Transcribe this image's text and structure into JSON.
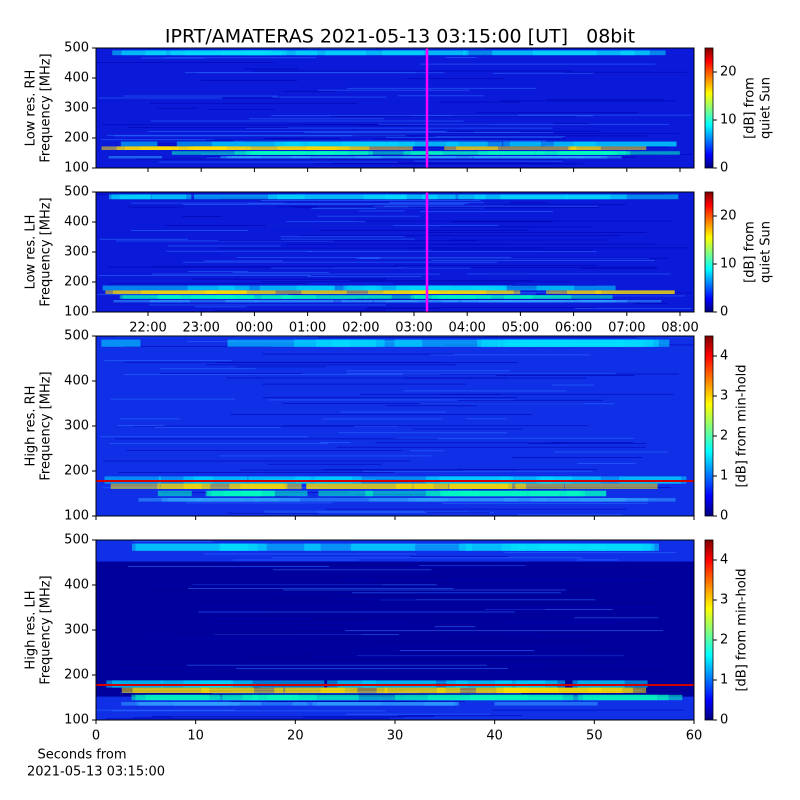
{
  "title": "IPRT/AMATERAS 2021-05-13 03:15:00 [UT]   08bit",
  "x_label": [
    "Seconds from",
    "2021-05-13 03:15:00"
  ],
  "chart_data": [
    {
      "type": "heatmap",
      "y_label": [
        "Low res. RH",
        "Frequency [MHz]"
      ],
      "ylim": [
        100,
        500
      ],
      "yticks": [
        100,
        200,
        300,
        400,
        500
      ],
      "colorbar_label": [
        "[dB] from",
        "quiet Sun"
      ],
      "clim": [
        0,
        25
      ],
      "cticks": [
        0,
        10,
        20
      ]
    },
    {
      "type": "heatmap",
      "y_label": [
        "Low res. LH",
        "Frequency [MHz]"
      ],
      "ylim": [
        100,
        500
      ],
      "yticks": [
        100,
        200,
        300,
        400,
        500
      ],
      "colorbar_label": [
        "[dB] from",
        "quiet Sun"
      ],
      "clim": [
        0,
        25
      ],
      "cticks": [
        0,
        10,
        20
      ],
      "x_tick_labels": [
        "22:00",
        "23:00",
        "00:00",
        "01:00",
        "02:00",
        "03:00",
        "04:00",
        "05:00",
        "06:00",
        "07:00",
        "08:00"
      ]
    },
    {
      "type": "heatmap",
      "y_label": [
        "High res. RH",
        "Frequency [MHz]"
      ],
      "ylim": [
        100,
        500
      ],
      "yticks": [
        100,
        200,
        300,
        400,
        500
      ],
      "colorbar_label": [
        "[dB] from min-hold"
      ],
      "clim": [
        0,
        4.5
      ],
      "cticks": [
        0,
        1,
        2,
        3,
        4
      ],
      "xlim": [
        0,
        60
      ],
      "xticks": [
        0,
        10,
        20,
        30,
        40,
        50,
        60
      ]
    },
    {
      "type": "heatmap",
      "y_label": [
        "High res. LH",
        "Frequency [MHz]"
      ],
      "ylim": [
        100,
        500
      ],
      "yticks": [
        100,
        200,
        300,
        400,
        500
      ],
      "colorbar_label": [
        "[dB] from min-hold"
      ],
      "clim": [
        0,
        4.5
      ],
      "cticks": [
        0,
        1,
        2,
        3,
        4
      ],
      "xlim": [
        0,
        60
      ],
      "xticks": [
        0,
        10,
        20,
        30,
        40,
        50,
        60
      ]
    }
  ]
}
